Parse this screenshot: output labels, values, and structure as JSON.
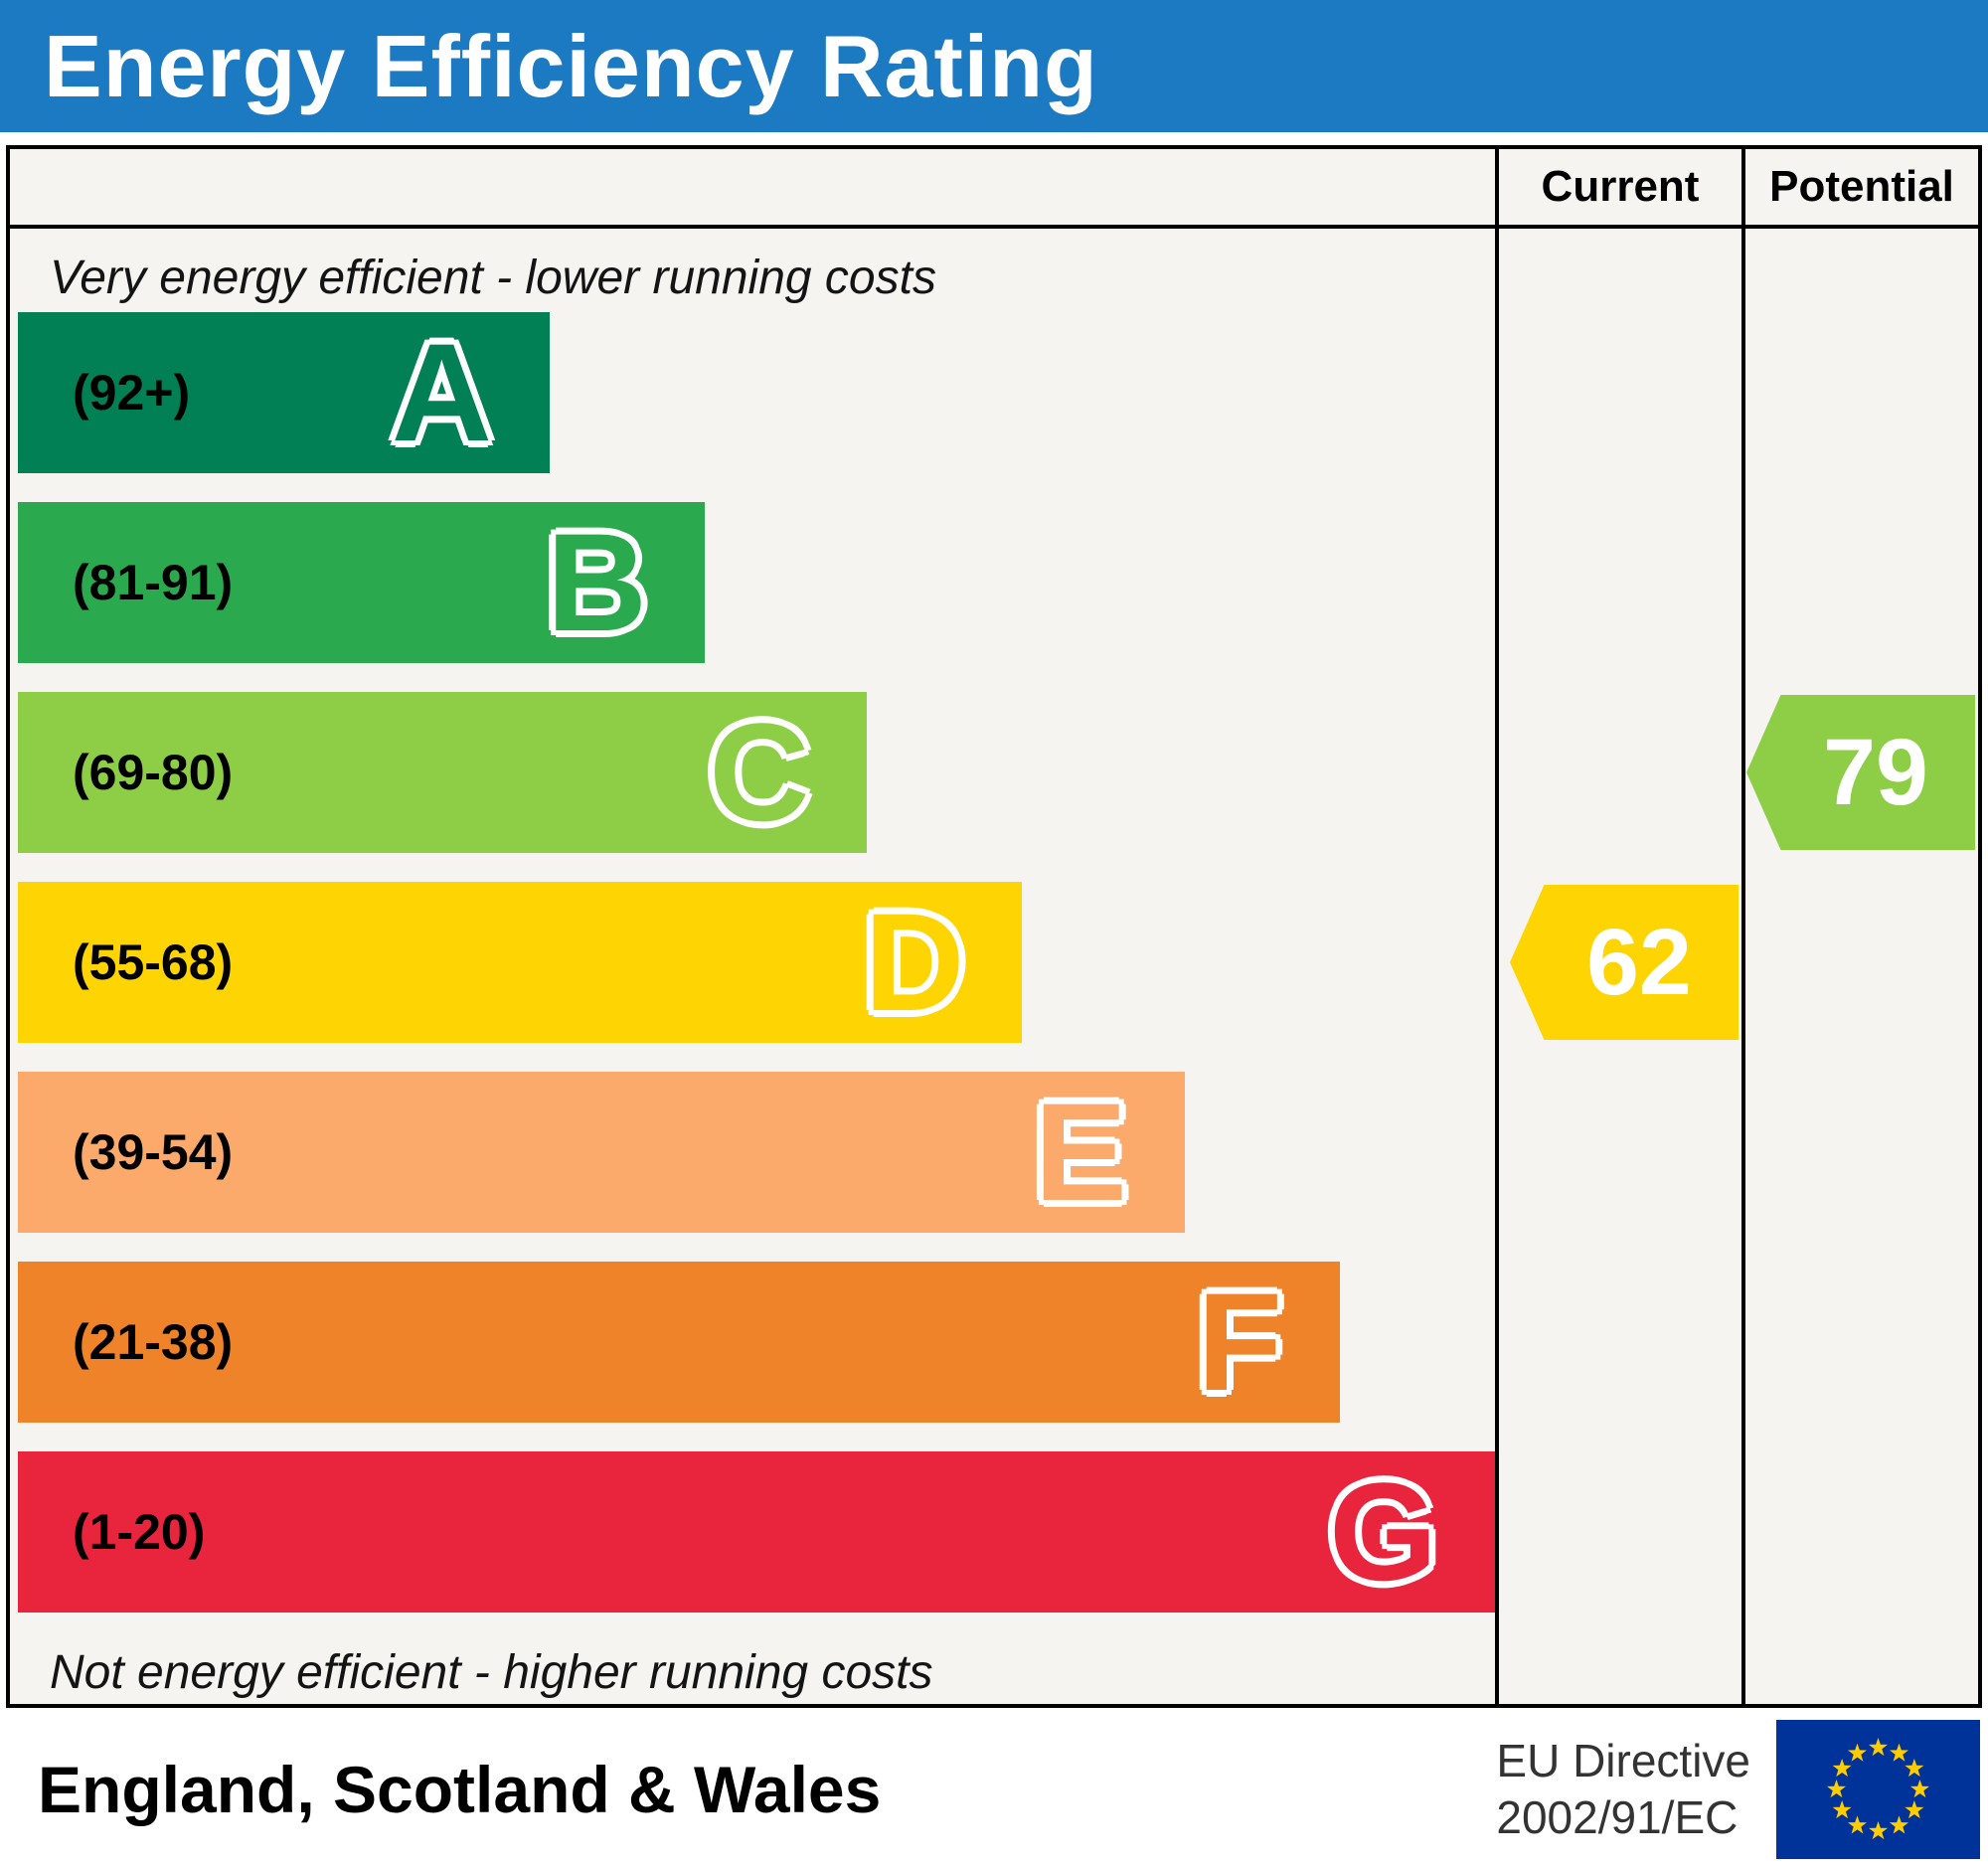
{
  "banner": {
    "title": "Energy Efficiency Rating",
    "bg_color": "#1b7ac1"
  },
  "columns": {
    "current_label": "Current",
    "potential_label": "Potential"
  },
  "scale": {
    "top_note": "Very energy efficient - lower running costs",
    "bottom_note": "Not energy efficient - higher running costs"
  },
  "chart_data": {
    "type": "bar",
    "title": "Energy Efficiency Rating",
    "bands": [
      {
        "letter": "A",
        "range_label": "(92+)",
        "min": 92,
        "max": 100,
        "color": "#008054",
        "width_pct": 36
      },
      {
        "letter": "B",
        "range_label": "(81-91)",
        "min": 81,
        "max": 91,
        "color": "#2aa94f",
        "width_pct": 46.5
      },
      {
        "letter": "C",
        "range_label": "(69-80)",
        "min": 69,
        "max": 80,
        "color": "#8dce46",
        "width_pct": 57.5
      },
      {
        "letter": "D",
        "range_label": "(55-68)",
        "min": 55,
        "max": 68,
        "color": "#fed402",
        "width_pct": 68
      },
      {
        "letter": "E",
        "range_label": "(39-54)",
        "min": 39,
        "max": 54,
        "color": "#fbaa6c",
        "width_pct": 79
      },
      {
        "letter": "F",
        "range_label": "(21-38)",
        "min": 21,
        "max": 38,
        "color": "#ee8329",
        "width_pct": 89.5
      },
      {
        "letter": "G",
        "range_label": "(1-20)",
        "min": 1,
        "max": 20,
        "color": "#e9243d",
        "width_pct": 100
      }
    ],
    "current": {
      "value": 62,
      "band": "D",
      "color": "#fed402"
    },
    "potential": {
      "value": 79,
      "band": "C",
      "color": "#8dce46"
    }
  },
  "footer": {
    "region": "England, Scotland & Wales",
    "directive_line1": "EU Directive",
    "directive_line2": "2002/91/EC",
    "eu_flag": {
      "bg": "#003399",
      "star_color": "#ffcc00"
    }
  }
}
